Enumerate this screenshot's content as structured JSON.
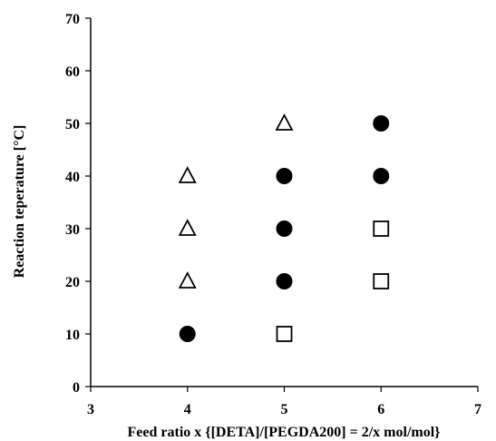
{
  "chart_data": {
    "type": "scatter",
    "xlabel": "Feed ratio x {[DETA]/[PEGDA200] = 2/x mol/mol}",
    "ylabel": "Reaction teperature [°C]",
    "xlim": [
      3,
      7
    ],
    "ylim": [
      0,
      70
    ],
    "xticks": [
      "3",
      "4",
      "5",
      "6",
      "7"
    ],
    "yticks": [
      "0",
      "10",
      "20",
      "30",
      "40",
      "50",
      "60",
      "70"
    ],
    "grid": false,
    "legend": "none",
    "series": [
      {
        "marker": "filled-circle",
        "color": "#000000",
        "points": [
          {
            "x": 4,
            "y": 10
          },
          {
            "x": 5,
            "y": 20
          },
          {
            "x": 5,
            "y": 30
          },
          {
            "x": 5,
            "y": 40
          },
          {
            "x": 6,
            "y": 40
          },
          {
            "x": 6,
            "y": 50
          }
        ]
      },
      {
        "marker": "open-triangle",
        "color": "#000000",
        "points": [
          {
            "x": 4,
            "y": 20
          },
          {
            "x": 4,
            "y": 30
          },
          {
            "x": 4,
            "y": 40
          },
          {
            "x": 5,
            "y": 50
          }
        ]
      },
      {
        "marker": "open-square",
        "color": "#000000",
        "points": [
          {
            "x": 5,
            "y": 10
          },
          {
            "x": 6,
            "y": 20
          },
          {
            "x": 6,
            "y": 30
          }
        ]
      }
    ]
  }
}
